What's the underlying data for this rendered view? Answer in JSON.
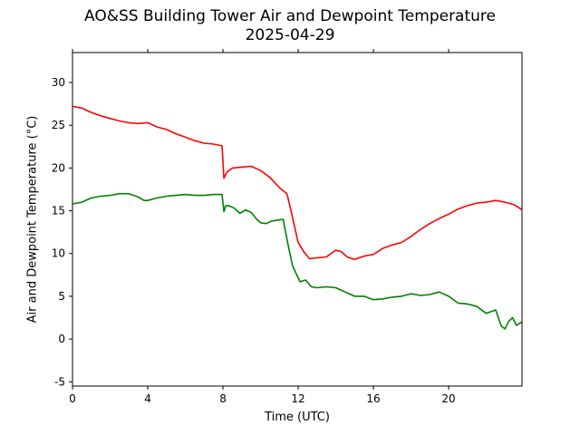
{
  "chart_data": {
    "type": "line",
    "title": "AO&SS Building Tower Air and Dewpoint Temperature",
    "subtitle": "2025-04-29",
    "xlabel": "Time (UTC)",
    "ylabel": "Air and Dewpoint Temperature (°C)",
    "xlim": [
      0,
      23.9
    ],
    "ylim": [
      -5.5,
      33.5
    ],
    "x_ticks": [
      0,
      4,
      8,
      12,
      16,
      20
    ],
    "y_ticks": [
      -5,
      0,
      5,
      10,
      15,
      20,
      25,
      30
    ],
    "grid": false,
    "legend": "none",
    "series": [
      {
        "color": "#ff0000",
        "x": [
          0.0,
          0.5,
          1.0,
          1.5,
          2.0,
          2.5,
          3.0,
          3.5,
          4.0,
          4.5,
          5.0,
          5.5,
          6.0,
          6.5,
          7.0,
          7.5,
          7.95,
          8.05,
          8.2,
          8.5,
          9.0,
          9.5,
          10.0,
          10.5,
          11.0,
          11.4,
          11.6,
          11.8,
          12.0,
          12.3,
          12.6,
          13.0,
          13.5,
          14.0,
          14.3,
          14.6,
          15.0,
          15.5,
          16.0,
          16.5,
          17.0,
          17.5,
          18.0,
          18.5,
          19.0,
          19.5,
          20.0,
          20.5,
          21.0,
          21.5,
          22.0,
          22.5,
          23.0,
          23.5,
          23.9
        ],
        "values": [
          27.2,
          27.0,
          26.5,
          26.1,
          25.8,
          25.5,
          25.3,
          25.2,
          25.3,
          24.8,
          24.5,
          24.0,
          23.6,
          23.2,
          22.9,
          22.8,
          22.6,
          18.8,
          19.5,
          20.0,
          20.1,
          20.2,
          19.7,
          18.9,
          17.7,
          17.0,
          15.2,
          13.2,
          11.3,
          10.2,
          9.4,
          9.5,
          9.6,
          10.4,
          10.2,
          9.6,
          9.3,
          9.7,
          9.9,
          10.6,
          11.0,
          11.3,
          12.0,
          12.8,
          13.5,
          14.1,
          14.6,
          15.2,
          15.6,
          15.9,
          16.0,
          16.2,
          16.0,
          15.7,
          15.1
        ]
      },
      {
        "color": "#008000",
        "x": [
          0.0,
          0.5,
          1.0,
          1.5,
          2.0,
          2.5,
          3.0,
          3.5,
          3.8,
          4.0,
          4.5,
          5.0,
          5.5,
          6.0,
          6.5,
          7.0,
          7.5,
          7.95,
          8.05,
          8.15,
          8.3,
          8.6,
          8.9,
          9.2,
          9.5,
          9.8,
          10.0,
          10.3,
          10.6,
          10.9,
          11.2,
          11.5,
          11.7,
          11.9,
          12.1,
          12.4,
          12.7,
          13.0,
          13.5,
          14.0,
          14.5,
          15.0,
          15.5,
          16.0,
          16.5,
          17.0,
          17.5,
          18.0,
          18.5,
          19.0,
          19.5,
          20.0,
          20.5,
          21.0,
          21.5,
          22.0,
          22.5,
          22.8,
          23.0,
          23.2,
          23.4,
          23.6,
          23.9
        ],
        "values": [
          15.8,
          16.0,
          16.5,
          16.7,
          16.8,
          17.0,
          17.0,
          16.6,
          16.2,
          16.2,
          16.5,
          16.7,
          16.8,
          16.9,
          16.8,
          16.8,
          16.9,
          16.9,
          14.9,
          15.6,
          15.6,
          15.3,
          14.7,
          15.1,
          14.8,
          14.0,
          13.6,
          13.5,
          13.8,
          13.9,
          14.0,
          10.6,
          8.6,
          7.6,
          6.7,
          6.9,
          6.1,
          6.0,
          6.1,
          6.0,
          5.5,
          5.0,
          5.0,
          4.6,
          4.7,
          4.9,
          5.0,
          5.3,
          5.1,
          5.2,
          5.5,
          5.0,
          4.2,
          4.1,
          3.8,
          3.0,
          3.4,
          1.5,
          1.2,
          2.1,
          2.5,
          1.6,
          2.0
        ]
      }
    ]
  }
}
